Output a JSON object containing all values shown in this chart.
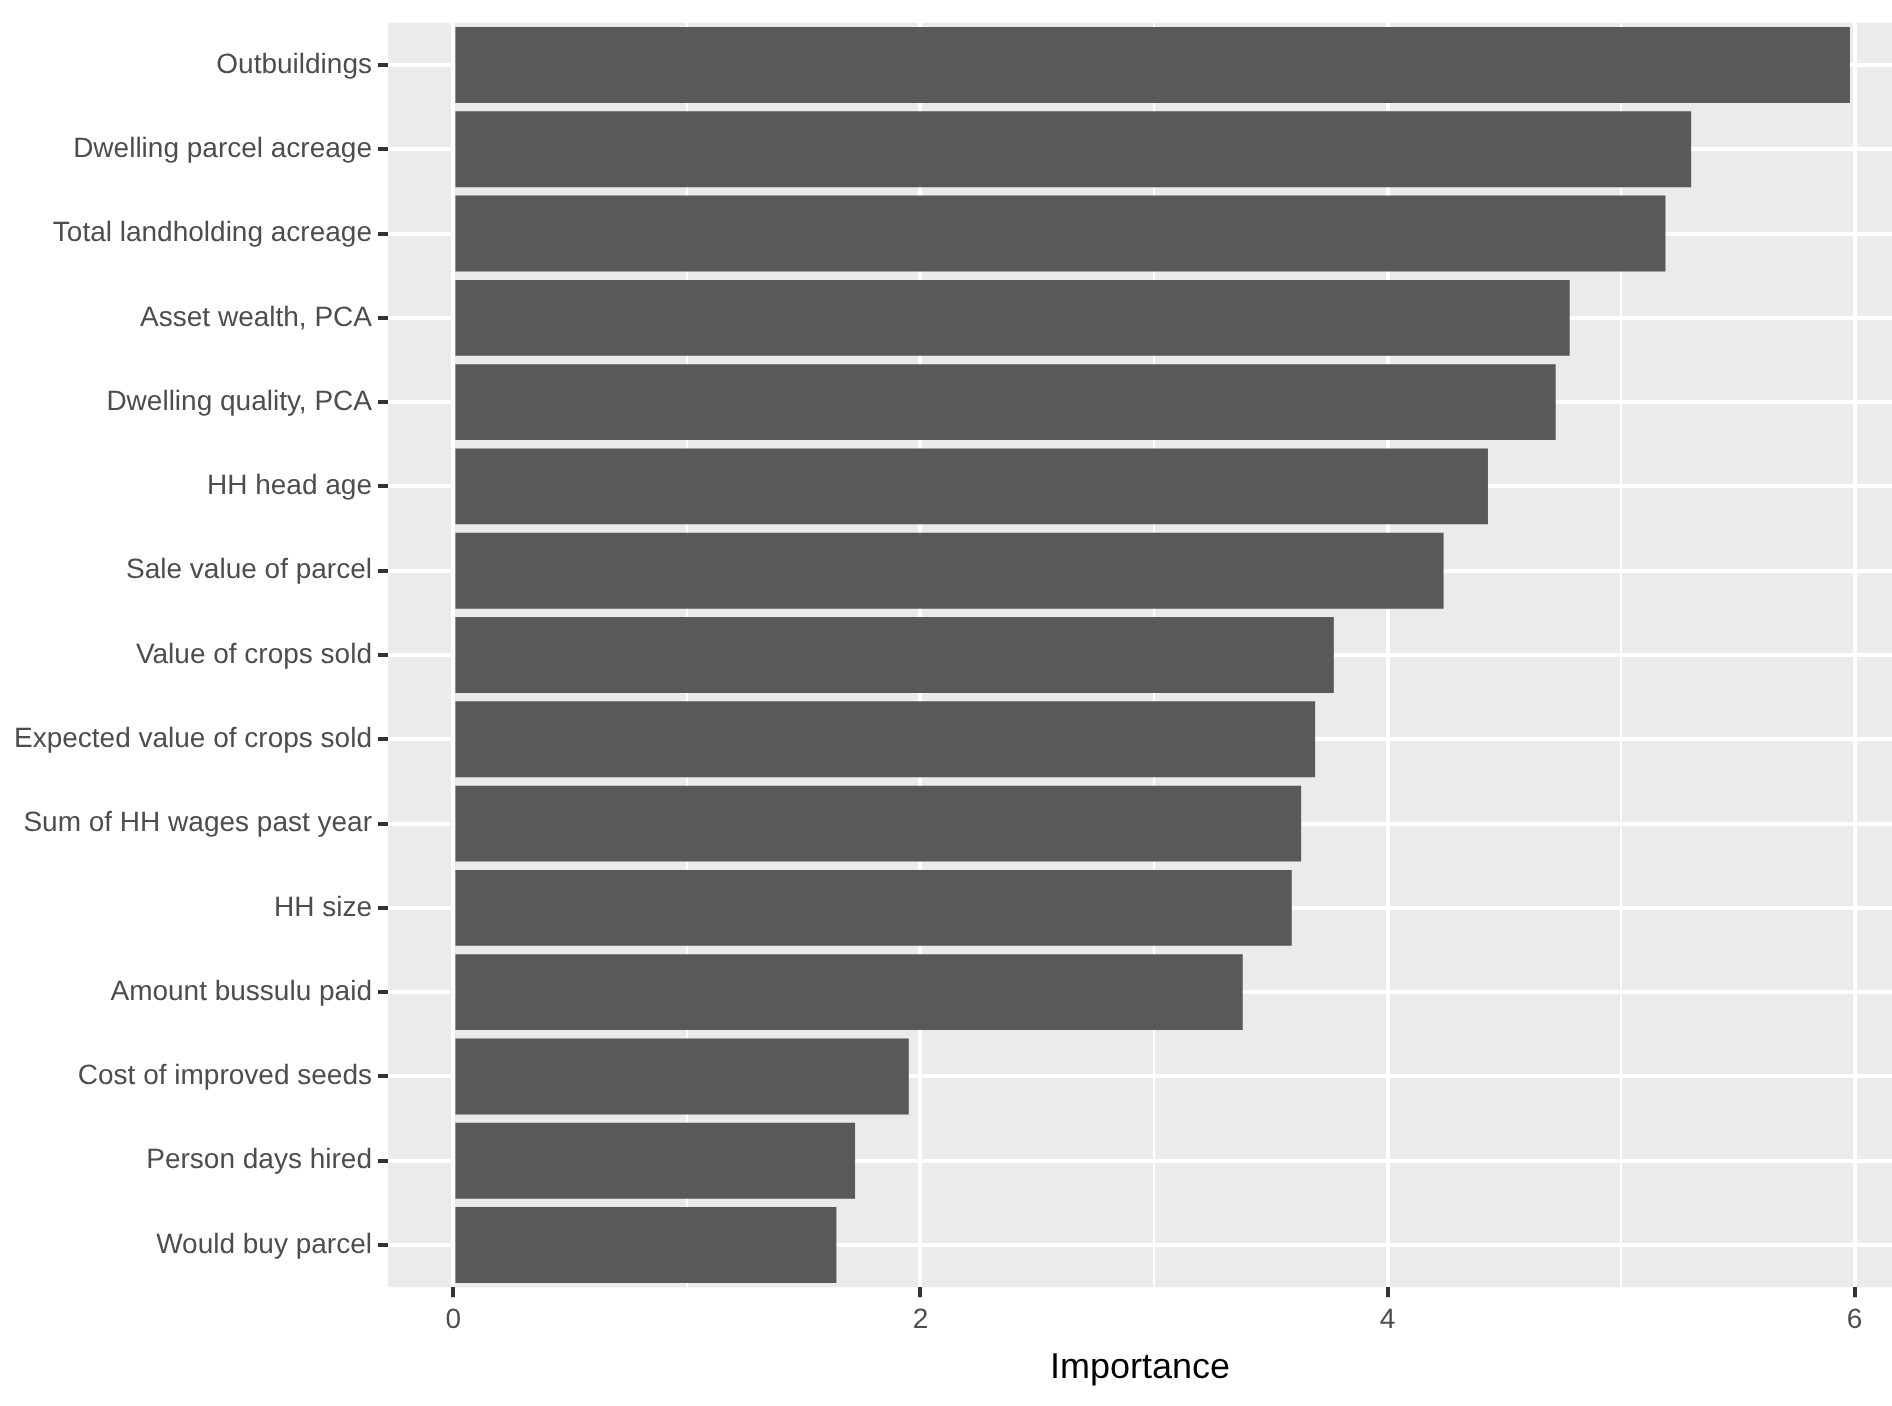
{
  "chart_data": {
    "type": "bar",
    "orientation": "horizontal",
    "xlabel": "Importance",
    "categories": [
      "Outbuildings",
      "Dwelling parcel acreage",
      "Total landholding acreage",
      "Asset wealth, PCA",
      "Dwelling quality, PCA",
      "HH head age",
      "Sale value of parcel",
      "Value of crops sold",
      "Expected value of crops sold",
      "Sum of HH wages past year",
      "HH size",
      "Amount bussulu paid",
      "Cost of improved seeds",
      "Person days hired",
      "Would buy parcel"
    ],
    "values": [
      5.98,
      5.3,
      5.19,
      4.78,
      4.72,
      4.43,
      4.24,
      3.77,
      3.69,
      3.63,
      3.59,
      3.38,
      1.95,
      1.72,
      1.64
    ],
    "color": "#595959",
    "xlim": [
      -0.28,
      6.16
    ],
    "xticks": [
      0,
      {
        "value": 1,
        "label": null
      },
      2,
      {
        "value": 3,
        "label": null
      },
      4,
      {
        "value": 5,
        "label": null
      },
      6
    ],
    "grid": true,
    "legend": false
  }
}
